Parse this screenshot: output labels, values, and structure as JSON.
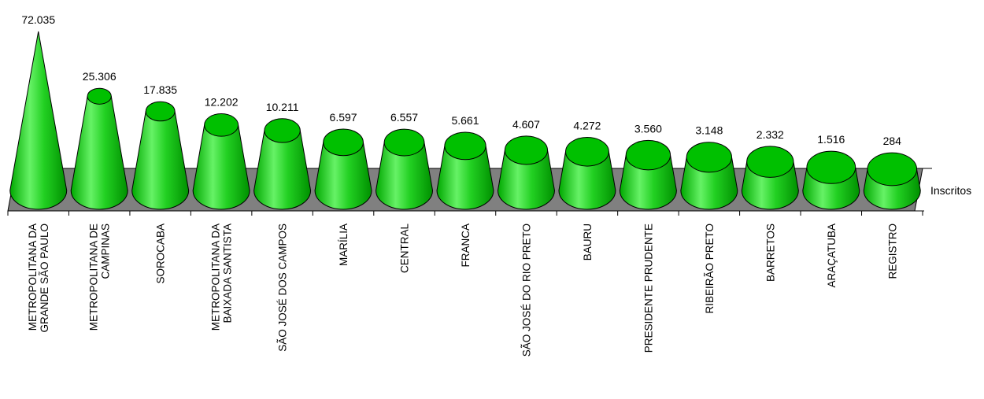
{
  "chart_data": {
    "type": "bar",
    "series": [
      {
        "name": "Inscritos",
        "values": [
          72035,
          25306,
          17835,
          12202,
          10211,
          6597,
          6557,
          5661,
          4607,
          4272,
          3560,
          3148,
          2332,
          1516,
          284
        ],
        "value_labels": [
          "72.035",
          "25.306",
          "17.835",
          "12.202",
          "10.211",
          "6.597",
          "6.557",
          "5.661",
          "4.607",
          "4.272",
          "3.560",
          "3.148",
          "2.332",
          "1.516",
          "284"
        ]
      }
    ],
    "categories": [
      [
        "METROPOLITANA DA",
        "GRANDE SÃO PAULO"
      ],
      [
        "METROPOLITANA DE",
        "CAMPINAS"
      ],
      [
        "SOROCABA"
      ],
      [
        "METROPOLITANA DA",
        "BAIXADA SANTISTA"
      ],
      [
        "SÃO JOSÉ DOS CAMPOS"
      ],
      [
        "MARÍLIA"
      ],
      [
        "CENTRAL"
      ],
      [
        "FRANCA"
      ],
      [
        "SÃO JOSÉ DO RIO PRETO"
      ],
      [
        "BAURU"
      ],
      [
        "PRESIDENTE PRUDENTE"
      ],
      [
        "RIBEIRÃO PRETO"
      ],
      [
        "BARRETOS"
      ],
      [
        "ARAÇATUBA"
      ],
      [
        "REGISTRO"
      ]
    ],
    "colors": {
      "fill": "#00c000",
      "fill_light": "#55ee55",
      "fill_dark": "#009a00",
      "platform": "#808080",
      "outline": "#000000"
    },
    "shape": "cone",
    "legend": "none"
  }
}
